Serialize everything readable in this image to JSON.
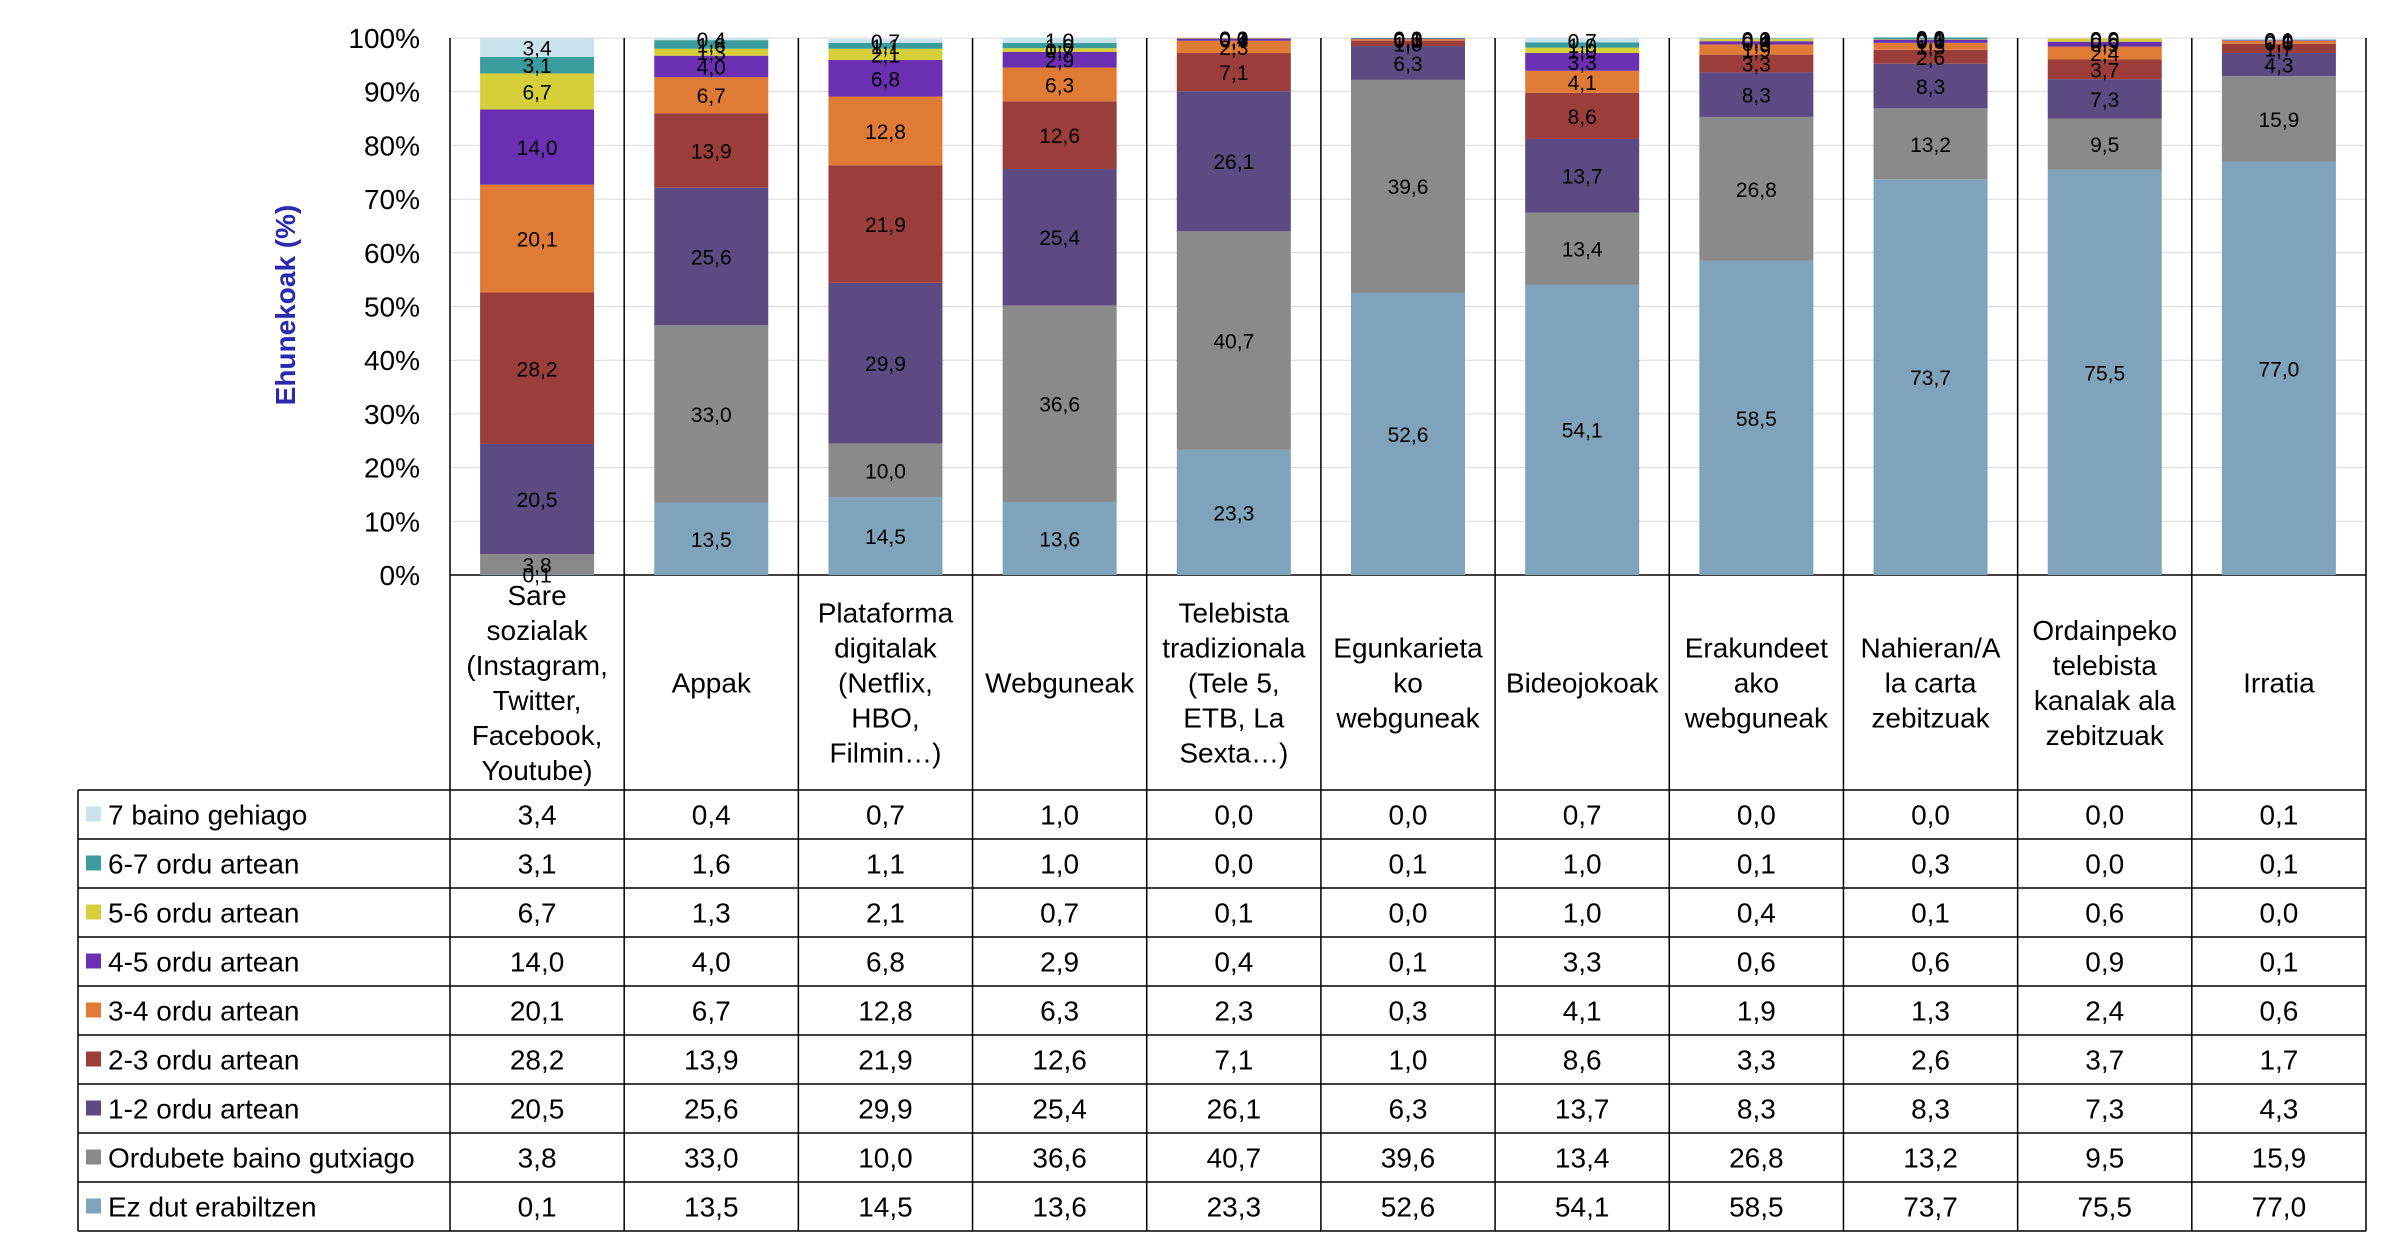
{
  "chart_data": {
    "type": "stacked-bar-100",
    "title": "",
    "ylabel": "Ehunekoak (%)",
    "ylim": [
      0,
      100
    ],
    "yticks": [
      "0%",
      "10%",
      "20%",
      "30%",
      "40%",
      "50%",
      "60%",
      "70%",
      "80%",
      "90%",
      "100%"
    ],
    "grid": true,
    "categories": [
      "Sare sozialak (Instagram, Twitter, Facebook, Youtube)",
      "Appak",
      "Plataforma digitalak (Netflix, HBO, Filmin…)",
      "Webguneak",
      "Telebista tradizionala (Tele 5, ETB, La Sexta…)",
      "Egunkarietako webguneak",
      "Bideojokoak",
      "Erakundeetako webguneak",
      "Nahieran/A la carta zebitzuak",
      "Ordainpeko telebista kanalak ala zebitzuak",
      "Irratia"
    ],
    "category_lines": [
      [
        "Sare",
        "sozialak",
        "(Instagram,",
        "Twitter,",
        "Facebook,",
        "Youtube)"
      ],
      [
        "Appak"
      ],
      [
        "Plataforma",
        "digitalak",
        "(Netflix,",
        "HBO,",
        "Filmin…)"
      ],
      [
        "Webguneak"
      ],
      [
        "Telebista",
        "tradizionala",
        "(Tele 5,",
        "ETB, La",
        "Sexta…)"
      ],
      [
        "Egunkarieta",
        "ko",
        "webguneak"
      ],
      [
        "Bideojokoak"
      ],
      [
        "Erakundeet",
        "ako",
        "webguneak"
      ],
      [
        "Nahieran/A",
        "la carta",
        "zebitzuak"
      ],
      [
        "Ordainpeko",
        "telebista",
        "kanalak ala",
        "zebitzuak"
      ],
      [
        "Irratia"
      ]
    ],
    "series": [
      {
        "name": "7 baino gehiago",
        "color": "#c9e3ed",
        "values": [
          3.4,
          0.4,
          0.7,
          1.0,
          0.0,
          0.0,
          0.7,
          0.0,
          0.0,
          0.0,
          0.1
        ]
      },
      {
        "name": "6-7 ordu artean",
        "color": "#3a9c9c",
        "values": [
          3.1,
          1.6,
          1.1,
          1.0,
          0.0,
          0.1,
          1.0,
          0.1,
          0.3,
          0.0,
          0.1
        ]
      },
      {
        "name": "5-6 ordu artean",
        "color": "#d6cf3a",
        "values": [
          6.7,
          1.3,
          2.1,
          0.7,
          0.1,
          0.0,
          1.0,
          0.4,
          0.1,
          0.6,
          0.0
        ]
      },
      {
        "name": "4-5 ordu artean",
        "color": "#6a2fb3",
        "values": [
          14.0,
          4.0,
          6.8,
          2.9,
          0.4,
          0.1,
          3.3,
          0.6,
          0.6,
          0.9,
          0.1
        ]
      },
      {
        "name": "3-4 ordu artean",
        "color": "#e07b35",
        "values": [
          20.1,
          6.7,
          12.8,
          6.3,
          2.3,
          0.3,
          4.1,
          1.9,
          1.3,
          2.4,
          0.6
        ]
      },
      {
        "name": "2-3 ordu artean",
        "color": "#9a3d3b",
        "values": [
          28.2,
          13.9,
          21.9,
          12.6,
          7.1,
          1.0,
          8.6,
          3.3,
          2.6,
          3.7,
          1.7
        ]
      },
      {
        "name": "1-2 ordu artean",
        "color": "#5c4a82",
        "values": [
          20.5,
          25.6,
          29.9,
          25.4,
          26.1,
          6.3,
          13.7,
          8.3,
          8.3,
          7.3,
          4.3
        ]
      },
      {
        "name": "Ordubete baino gutxiago",
        "color": "#8a8a8a",
        "values": [
          3.8,
          33.0,
          10.0,
          36.6,
          40.7,
          39.6,
          13.4,
          26.8,
          13.2,
          9.5,
          15.9
        ]
      },
      {
        "name": "Ez dut erabiltzen",
        "color": "#7ea3ba",
        "values": [
          0.1,
          13.5,
          14.5,
          13.6,
          23.3,
          52.6,
          54.1,
          58.5,
          73.7,
          75.5,
          77.0
        ]
      }
    ],
    "legend": "data-table-below"
  }
}
